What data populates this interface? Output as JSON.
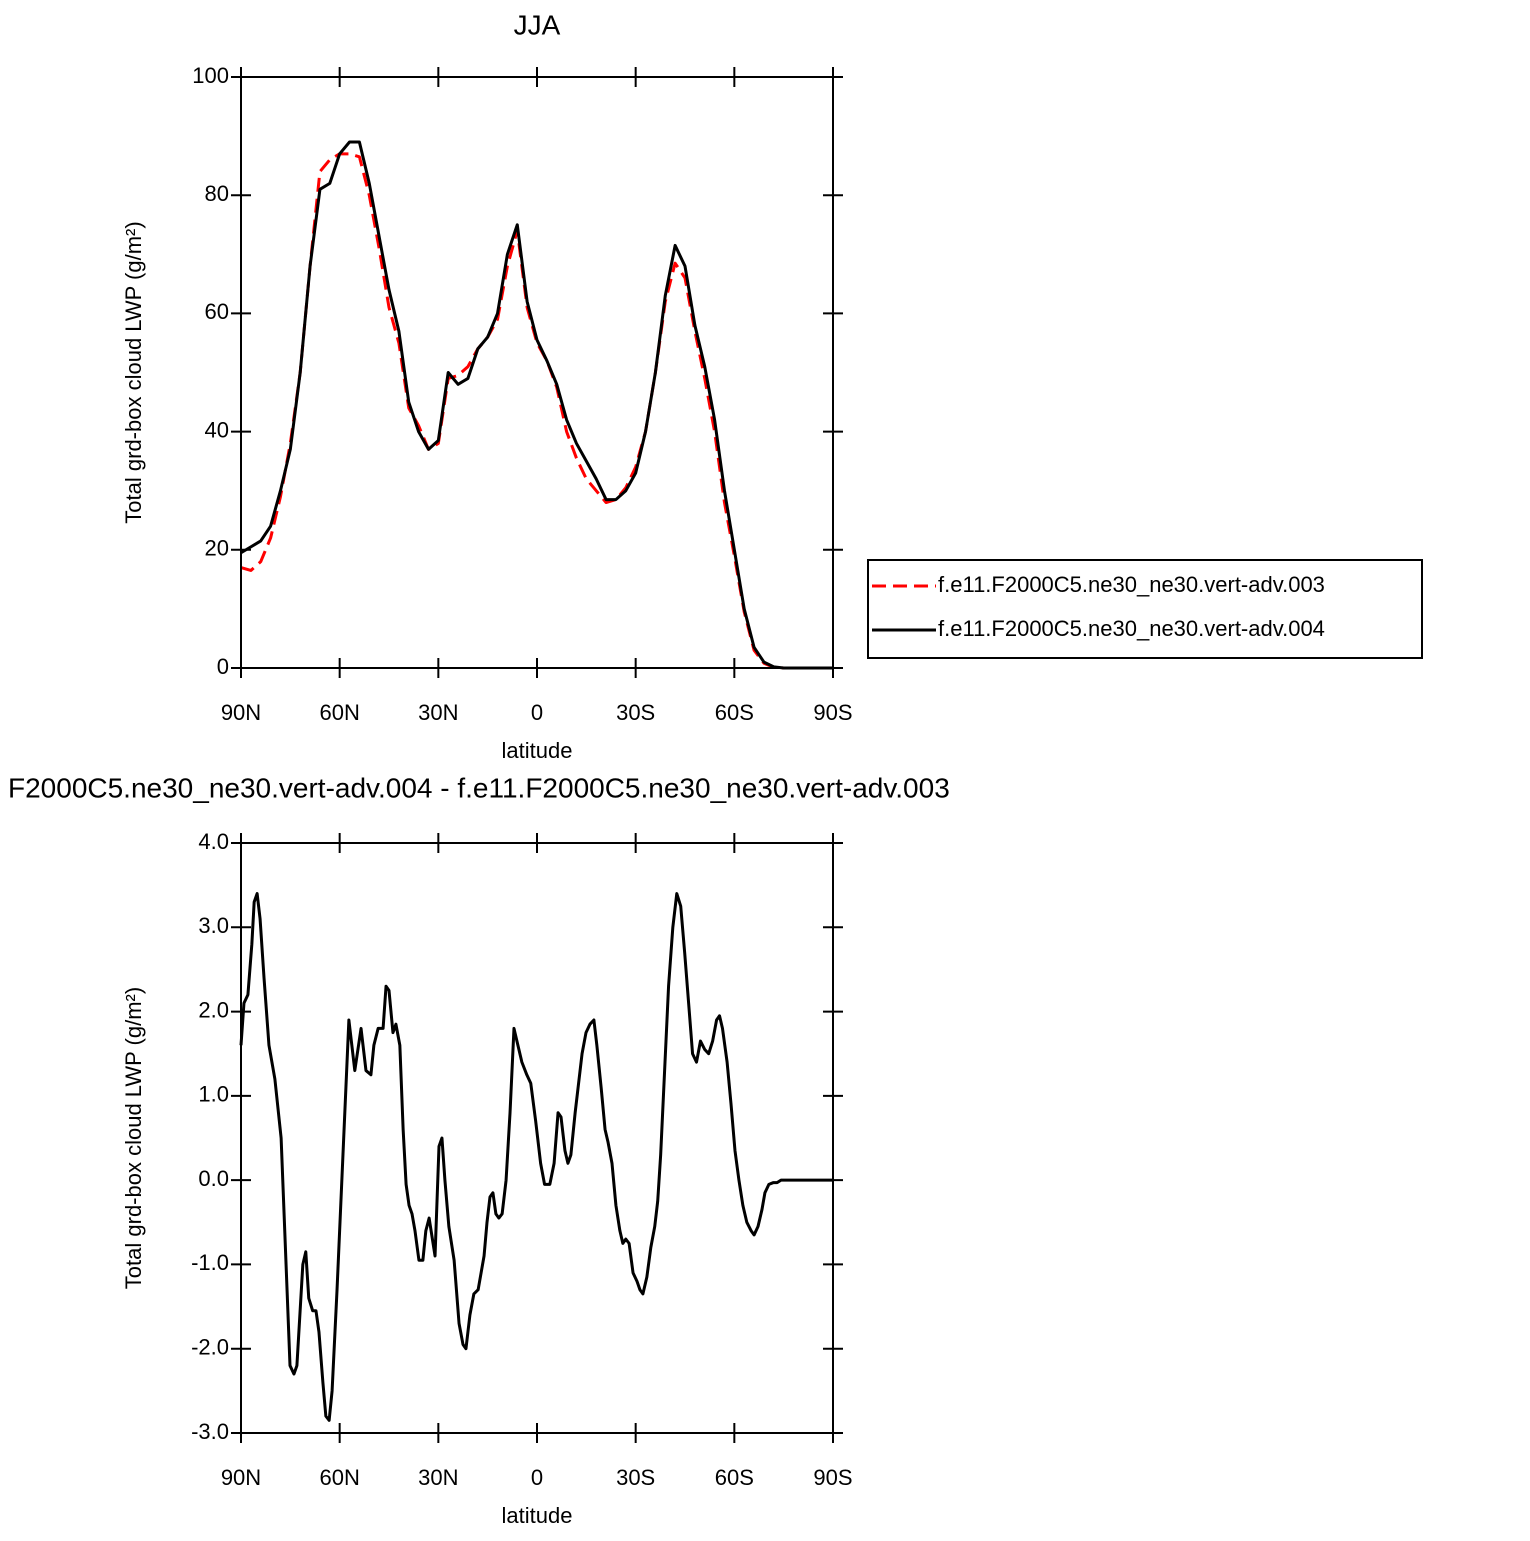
{
  "chart_data": [
    {
      "type": "line",
      "title": "JJA",
      "xlabel": "latitude",
      "ylabel": "Total grd-box cloud LWP (g/m²)",
      "x": [
        90,
        87,
        84,
        81,
        78,
        75,
        72,
        69,
        66,
        63,
        60,
        57,
        54,
        51,
        48,
        45,
        42,
        39,
        36,
        33,
        30,
        27,
        24,
        21,
        18,
        15,
        12,
        9,
        6,
        3,
        0,
        -3,
        -6,
        -9,
        -12,
        -15,
        -18,
        -21,
        -24,
        -27,
        -30,
        -33,
        -36,
        -39,
        -42,
        -45,
        -48,
        -51,
        -54,
        -57,
        -60,
        -63,
        -66,
        -69,
        -72,
        -75,
        -78,
        -81,
        -84,
        -87,
        -90
      ],
      "series": [
        {
          "name": "f.e11.F2000C5.ne30_ne30.vert-adv.003",
          "color": "#ff0000",
          "line_style": "dashed",
          "values": [
            17,
            16.5,
            18,
            22,
            29,
            38,
            50,
            68,
            84,
            86,
            87,
            87,
            86.5,
            80,
            71,
            61,
            55,
            44,
            41,
            37,
            38,
            49,
            49.5,
            51,
            54,
            56,
            59,
            68,
            74,
            61,
            55,
            52,
            47.5,
            40,
            35.5,
            32,
            30,
            28,
            28.5,
            30.5,
            34,
            40,
            50,
            62,
            68.5,
            66,
            57,
            49,
            40,
            28,
            19,
            9.5,
            3,
            0.8,
            0.1,
            0,
            0,
            0,
            0,
            0,
            0
          ]
        },
        {
          "name": "f.e11.F2000C5.ne30_ne30.vert-adv.004",
          "color": "#000000",
          "line_style": "solid",
          "values": [
            19.5,
            20.5,
            21.5,
            24,
            30,
            37,
            50,
            68,
            81,
            82,
            87,
            89,
            89,
            82,
            73,
            64,
            57,
            45,
            40,
            37,
            38.5,
            50,
            48,
            49,
            54,
            56,
            60,
            70,
            75,
            62,
            55.5,
            52,
            48,
            42,
            38,
            35,
            32,
            28.5,
            28.5,
            30,
            33,
            40,
            50,
            63,
            71.5,
            68,
            58,
            51,
            42,
            30,
            20,
            10,
            3.5,
            1,
            0.2,
            0,
            0,
            0,
            0,
            0,
            0
          ]
        }
      ],
      "xlim": [
        90,
        -90
      ],
      "xticks": [
        {
          "value": 90,
          "label": "90N"
        },
        {
          "value": 60,
          "label": "60N"
        },
        {
          "value": 30,
          "label": "30N"
        },
        0,
        {
          "value": -30,
          "label": "30S"
        },
        {
          "value": -60,
          "label": "60S"
        },
        {
          "value": -90,
          "label": "90S"
        }
      ],
      "ylim": [
        0,
        100
      ],
      "yticks": [
        0,
        20,
        40,
        60,
        80,
        100
      ],
      "legend": "right"
    },
    {
      "type": "line",
      "title": "F2000C5.ne30_ne30.vert-adv.004 - f.e11.F2000C5.ne30_ne30.vert-adv.003",
      "xlabel": "latitude",
      "ylabel": "Total grd-box cloud LWP (g/m²)",
      "x": [
        90.0,
        89.1,
        87.9,
        86.7,
        86.0,
        85.1,
        84.2,
        83.0,
        81.5,
        79.7,
        77.8,
        76.3,
        75.1,
        73.9,
        73.0,
        71.2,
        70.3,
        69.4,
        68.2,
        67.2,
        66.3,
        65.1,
        64.2,
        63.2,
        62.3,
        60.8,
        59.0,
        57.2,
        55.4,
        53.5,
        52.0,
        50.5,
        49.6,
        48.3,
        46.8,
        45.9,
        45.0,
        43.8,
        42.9,
        41.7,
        40.7,
        39.8,
        38.9,
        38.0,
        37.1,
        35.9,
        34.7,
        33.8,
        32.8,
        32.2,
        31.0,
        29.8,
        28.9,
        28.0,
        26.8,
        25.2,
        23.7,
        22.5,
        21.6,
        20.4,
        19.2,
        17.9,
        17.0,
        16.1,
        15.2,
        14.3,
        13.4,
        12.5,
        11.6,
        10.6,
        9.4,
        8.2,
        7.0,
        5.8,
        4.6,
        3.1,
        1.9,
        0.4,
        -1.1,
        -2.3,
        -3.9,
        -5.2,
        -6.4,
        -7.3,
        -8.5,
        -9.4,
        -10.3,
        -11.6,
        -12.5,
        -13.7,
        -14.9,
        -16.1,
        -17.3,
        -18.2,
        -19.5,
        -20.7,
        -21.6,
        -22.8,
        -24.0,
        -25.2,
        -26.1,
        -27.0,
        -28.0,
        -29.2,
        -30.4,
        -31.3,
        -32.2,
        -33.4,
        -34.6,
        -35.8,
        -36.7,
        -37.6,
        -38.8,
        -40.0,
        -41.3,
        -42.5,
        -43.7,
        -44.9,
        -46.1,
        -47.3,
        -48.5,
        -49.7,
        -51.0,
        -52.2,
        -53.4,
        -54.6,
        -55.5,
        -56.4,
        -57.8,
        -59.0,
        -60.2,
        -61.4,
        -62.6,
        -63.8,
        -65.1,
        -66.0,
        -67.2,
        -68.4,
        -69.3,
        -70.5,
        -71.8,
        -73.0,
        -74.2,
        -76.9,
        -80.0,
        -90.0
      ],
      "values": [
        1.6,
        2.1,
        2.2,
        2.8,
        3.3,
        3.4,
        3.1,
        2.4,
        1.6,
        1.2,
        0.5,
        -1.0,
        -2.2,
        -2.3,
        -2.2,
        -1.0,
        -0.85,
        -1.4,
        -1.55,
        -1.55,
        -1.8,
        -2.4,
        -2.8,
        -2.85,
        -2.5,
        -1.3,
        0.3,
        1.9,
        1.3,
        1.8,
        1.3,
        1.25,
        1.6,
        1.8,
        1.8,
        2.3,
        2.25,
        1.75,
        1.85,
        1.6,
        0.6,
        -0.05,
        -0.3,
        -0.4,
        -0.6,
        -0.95,
        -0.95,
        -0.6,
        -0.45,
        -0.6,
        -0.9,
        0.4,
        0.5,
        0,
        -0.55,
        -0.95,
        -1.7,
        -1.95,
        -2.0,
        -1.6,
        -1.35,
        -1.3,
        -1.1,
        -0.9,
        -0.5,
        -0.2,
        -0.15,
        -0.4,
        -0.45,
        -0.4,
        0,
        0.8,
        1.8,
        1.6,
        1.4,
        1.25,
        1.15,
        0.7,
        0.2,
        -0.05,
        -0.05,
        0.2,
        0.8,
        0.75,
        0.35,
        0.2,
        0.3,
        0.8,
        1.1,
        1.5,
        1.75,
        1.85,
        1.9,
        1.6,
        1.1,
        0.6,
        0.45,
        0.2,
        -0.3,
        -0.6,
        -0.75,
        -0.7,
        -0.75,
        -1.1,
        -1.2,
        -1.3,
        -1.35,
        -1.15,
        -0.8,
        -0.55,
        -0.25,
        0.3,
        1.3,
        2.3,
        3.0,
        3.4,
        3.25,
        2.7,
        2.1,
        1.5,
        1.4,
        1.65,
        1.55,
        1.5,
        1.65,
        1.9,
        1.95,
        1.8,
        1.4,
        0.9,
        0.35,
        0,
        -0.3,
        -0.5,
        -0.6,
        -0.65,
        -0.55,
        -0.35,
        -0.15,
        -0.05,
        -0.03,
        -0.03,
        0,
        0,
        0,
        0
      ],
      "color": "#000000",
      "xlim": [
        90,
        -90
      ],
      "xticks": [
        {
          "value": 90,
          "label": "90N"
        },
        {
          "value": 60,
          "label": "60N"
        },
        {
          "value": 30,
          "label": "30N"
        },
        0,
        {
          "value": -30,
          "label": "30S"
        },
        {
          "value": -60,
          "label": "60S"
        },
        {
          "value": -90,
          "label": "90S"
        }
      ],
      "ylim": [
        -3,
        4
      ],
      "yticks": [
        {
          "value": -3,
          "label": "-3.0"
        },
        {
          "value": -2,
          "label": "-2.0"
        },
        {
          "value": -1,
          "label": "-1.0"
        },
        {
          "value": 0,
          "label": "0.0"
        },
        {
          "value": 1,
          "label": "1.0"
        },
        {
          "value": 2,
          "label": "2.0"
        },
        {
          "value": 3,
          "label": "3.0"
        },
        {
          "value": 4,
          "label": "4.0"
        }
      ]
    }
  ]
}
